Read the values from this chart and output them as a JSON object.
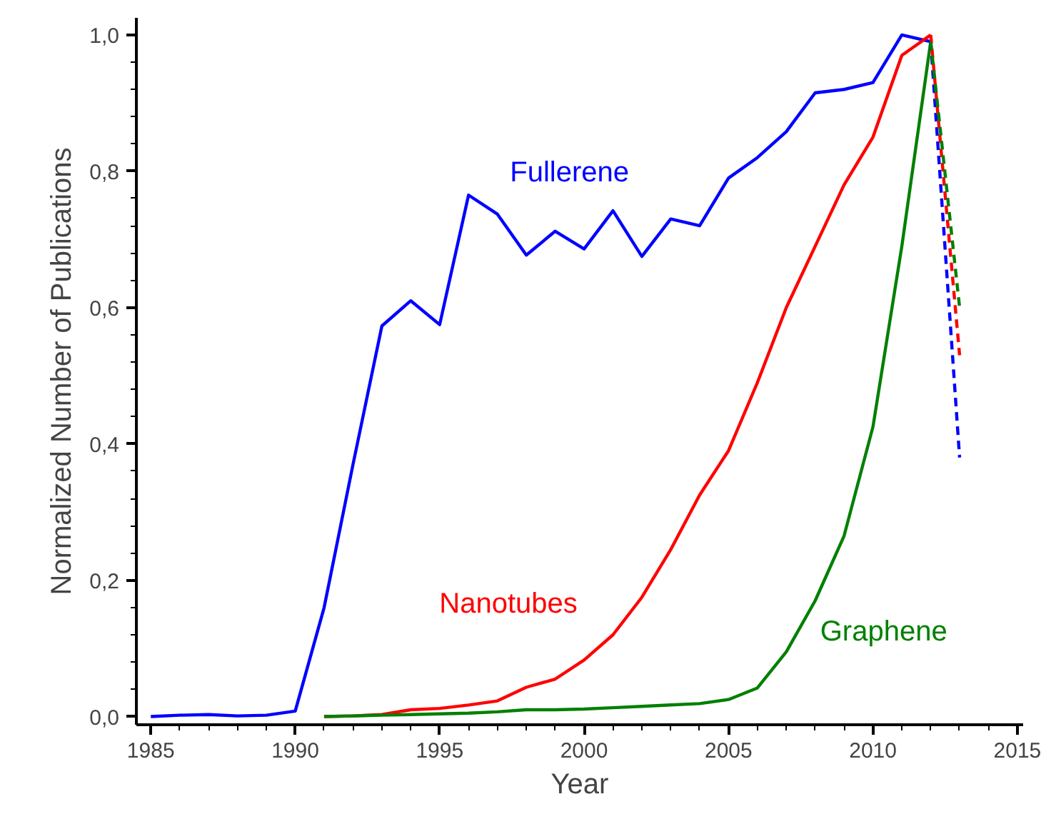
{
  "chart_data": {
    "type": "line",
    "xlabel": "Year",
    "ylabel": "Normalized Number of Publications",
    "xlim": [
      1984.5,
      2015.2
    ],
    "ylim": [
      -0.012,
      1.025
    ],
    "xticks": [
      1985,
      1990,
      1995,
      2000,
      2005,
      2010,
      2015
    ],
    "yticks": [
      {
        "value": 0,
        "label": "0,0"
      },
      {
        "value": 0.2,
        "label": "0,2"
      },
      {
        "value": 0.4,
        "label": "0,4"
      },
      {
        "value": 0.6,
        "label": "0,6"
      },
      {
        "value": 0.8,
        "label": "0,8"
      },
      {
        "value": 1.0,
        "label": "1,0"
      }
    ],
    "grid": false,
    "legend": false,
    "line_style": "solid",
    "series": [
      {
        "name": "Fullerene",
        "color": "#0000ff",
        "x": [
          1985,
          1986,
          1987,
          1988,
          1989,
          1990,
          1991,
          1992,
          1993,
          1994,
          1995,
          1996,
          1997,
          1998,
          1999,
          2000,
          2001,
          2002,
          2003,
          2004,
          2005,
          2006,
          2007,
          2008,
          2009,
          2010,
          2011,
          2012
        ],
        "values": [
          0,
          0.002,
          0.003,
          0.001,
          0.002,
          0.008,
          0.16,
          0.37,
          0.573,
          0.61,
          0.575,
          0.765,
          0.737,
          0.677,
          0.712,
          0.686,
          0.742,
          0.675,
          0.73,
          0.72,
          0.79,
          0.82,
          0.858,
          0.915,
          0.92,
          0.93,
          1.0,
          0.99
        ]
      },
      {
        "name": "Nanotubes",
        "color": "#ff0000",
        "x": [
          1991,
          1992,
          1993,
          1994,
          1995,
          1996,
          1997,
          1998,
          1999,
          2000,
          2001,
          2002,
          2003,
          2004,
          2005,
          2006,
          2007,
          2008,
          2009,
          2010,
          2011,
          2012
        ],
        "values": [
          0,
          0.001,
          0.003,
          0.01,
          0.012,
          0.017,
          0.023,
          0.043,
          0.055,
          0.083,
          0.12,
          0.175,
          0.245,
          0.325,
          0.39,
          0.49,
          0.6,
          0.69,
          0.78,
          0.85,
          0.97,
          1.0
        ]
      },
      {
        "name": "Graphene",
        "color": "#008000",
        "x": [
          1991,
          1992,
          1993,
          1994,
          1995,
          1996,
          1997,
          1998,
          1999,
          2000,
          2001,
          2002,
          2003,
          2004,
          2005,
          2006,
          2007,
          2008,
          2009,
          2010,
          2011,
          2012
        ],
        "values": [
          0,
          0.001,
          0.002,
          0.003,
          0.004,
          0.005,
          0.007,
          0.01,
          0.01,
          0.011,
          0.013,
          0.015,
          0.017,
          0.019,
          0.025,
          0.042,
          0.095,
          0.17,
          0.265,
          0.425,
          0.69,
          0.99
        ]
      },
      {
        "color": "#0000ff",
        "line_style": "dashed",
        "x": [
          2012,
          2013
        ],
        "values": [
          0.99,
          0.38
        ]
      },
      {
        "color": "#ff0000",
        "line_style": "dashed",
        "x": [
          2012,
          2013
        ],
        "values": [
          1.0,
          0.53
        ]
      },
      {
        "color": "#008000",
        "line_style": "dashed",
        "x": [
          2012,
          2013
        ],
        "values": [
          0.99,
          0.6
        ]
      }
    ]
  }
}
